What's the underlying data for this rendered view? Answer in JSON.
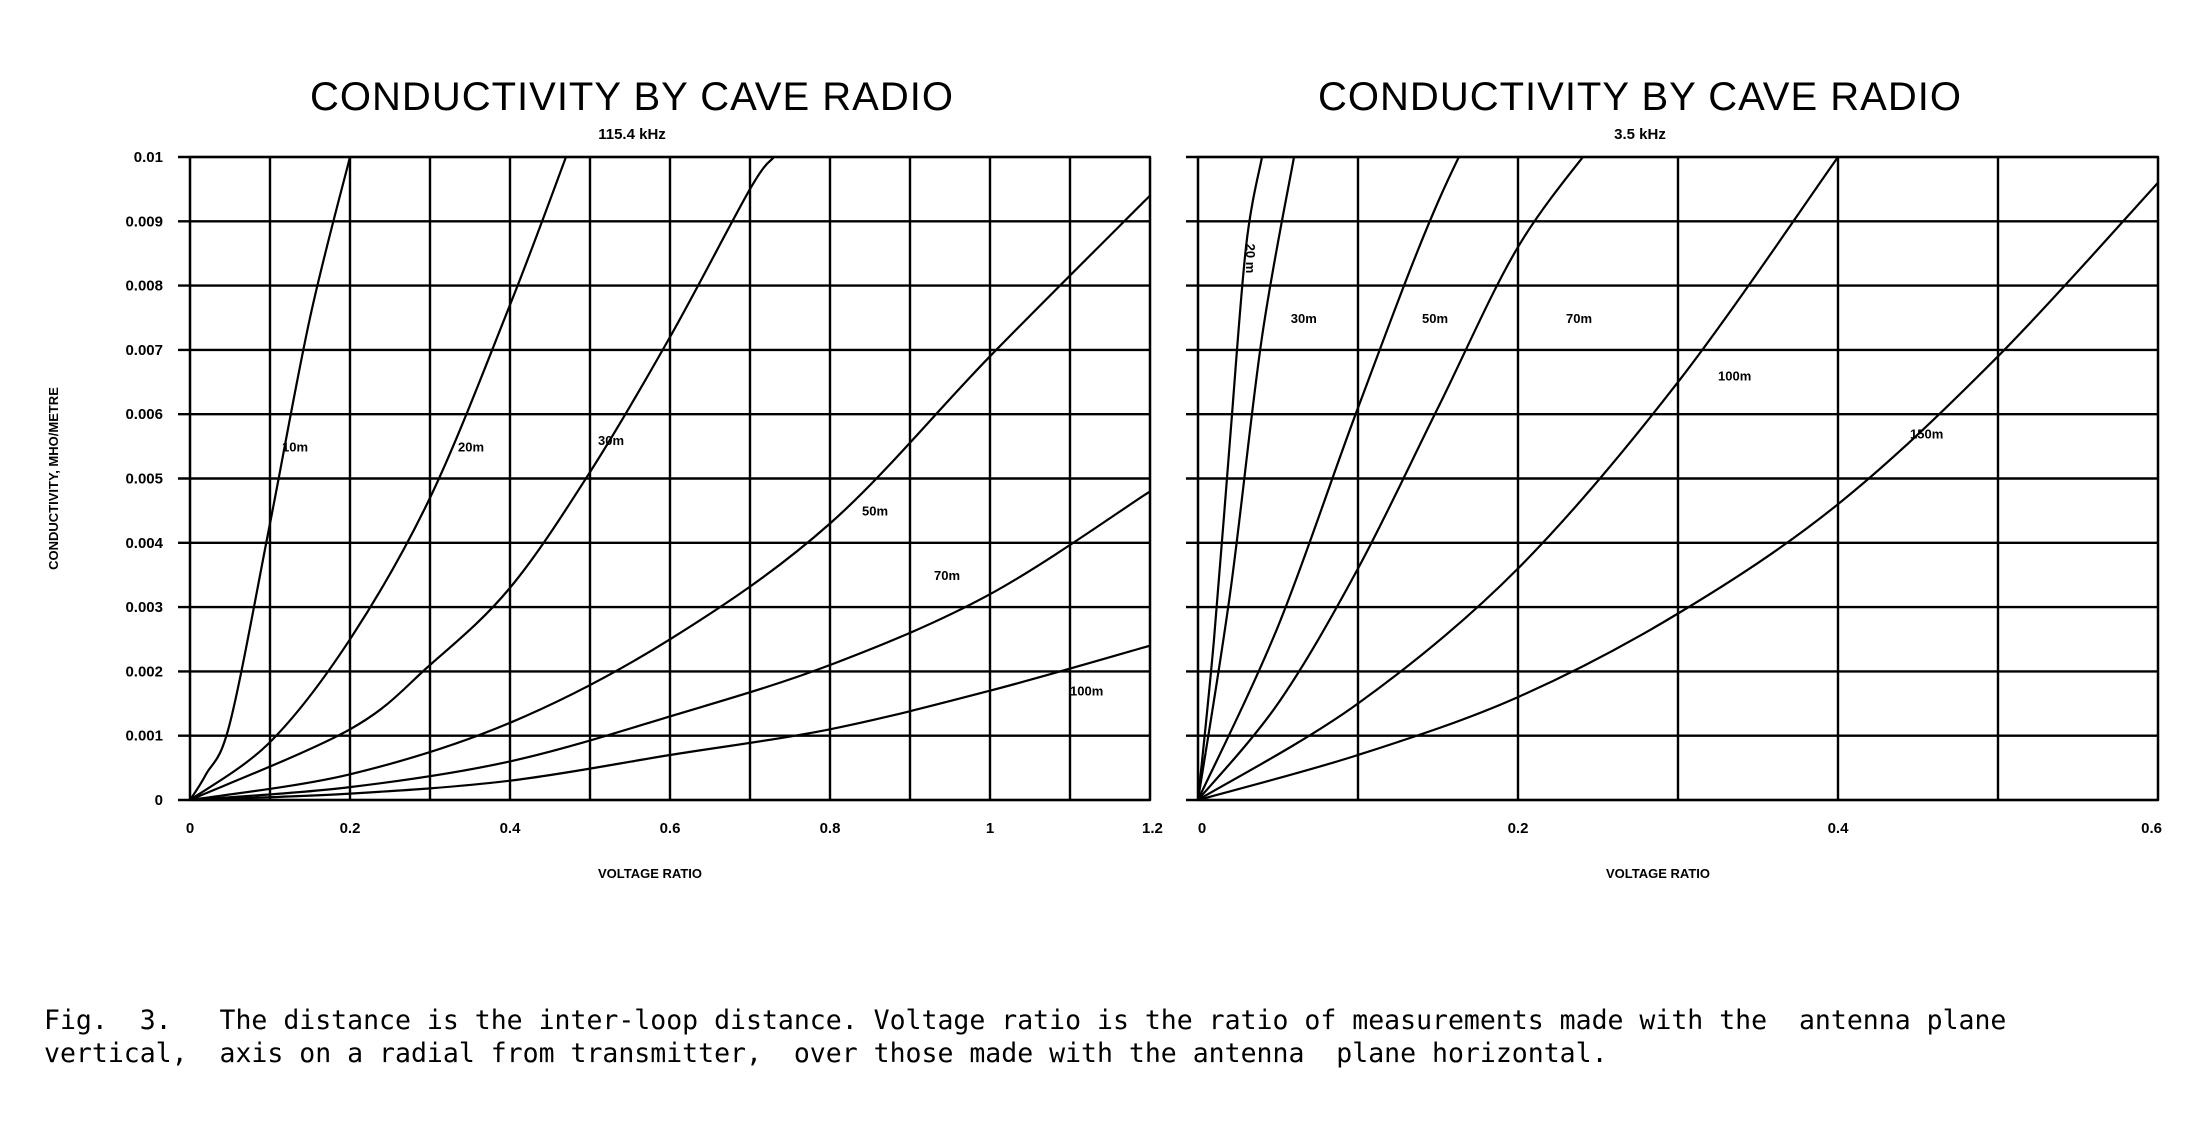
{
  "chart_data": [
    {
      "type": "line",
      "title": "CONDUCTIVITY BY CAVE RADIO",
      "subtitle": "115.4 kHz",
      "xlabel": "VOLTAGE RATIO",
      "ylabel": "CONDUCTIVITY, MHO/METRE",
      "xlim": [
        0,
        1.2
      ],
      "ylim": [
        0,
        0.01
      ],
      "x_ticks": [
        "0",
        "0.2",
        "0.4",
        "0.6",
        "0.8",
        "1",
        "1.2"
      ],
      "y_ticks": [
        "0",
        "0.001",
        "0.002",
        "0.003",
        "0.004",
        "0.005",
        "0.006",
        "0.007",
        "0.008",
        "0.009",
        "0.01"
      ],
      "grid": true,
      "series": [
        {
          "name": "10m",
          "x": [
            0,
            0.02,
            0.05,
            0.1,
            0.15,
            0.2
          ],
          "y": [
            0,
            0.0004,
            0.0012,
            0.0043,
            0.0075,
            0.01
          ]
        },
        {
          "name": "20m",
          "x": [
            0,
            0.1,
            0.2,
            0.3,
            0.4,
            0.47
          ],
          "y": [
            0,
            0.0009,
            0.0025,
            0.0047,
            0.0077,
            0.01
          ]
        },
        {
          "name": "30m",
          "x": [
            0,
            0.2,
            0.3,
            0.4,
            0.5,
            0.6,
            0.7,
            0.73
          ],
          "y": [
            0,
            0.0011,
            0.0021,
            0.0033,
            0.0051,
            0.0072,
            0.0095,
            0.01
          ]
        },
        {
          "name": "50m",
          "x": [
            0,
            0.2,
            0.4,
            0.6,
            0.8,
            1.0,
            1.2
          ],
          "y": [
            0,
            0.0004,
            0.0012,
            0.0025,
            0.0043,
            0.0069,
            0.0094
          ]
        },
        {
          "name": "70m",
          "x": [
            0,
            0.2,
            0.4,
            0.6,
            0.8,
            1.0,
            1.2
          ],
          "y": [
            0,
            0.0002,
            0.0006,
            0.0013,
            0.0021,
            0.0032,
            0.0048
          ]
        },
        {
          "name": "100m",
          "x": [
            0,
            0.2,
            0.4,
            0.6,
            0.8,
            1.0,
            1.2
          ],
          "y": [
            0,
            0.0001,
            0.0003,
            0.0007,
            0.0011,
            0.0017,
            0.0024
          ]
        }
      ],
      "curve_labels": [
        "10m",
        "20m",
        "30m",
        "50m",
        "70m",
        "100m"
      ]
    },
    {
      "type": "line",
      "title": "CONDUCTIVITY BY CAVE RADIO",
      "subtitle": "3.5 kHz",
      "xlabel": "VOLTAGE RATIO",
      "xlim": [
        0,
        0.6
      ],
      "ylim": [
        0,
        0.01
      ],
      "x_ticks": [
        "0",
        "0.2",
        "0.4",
        "0.6"
      ],
      "grid": true,
      "series": [
        {
          "name": "20m",
          "x": [
            0,
            0.01,
            0.02,
            0.03,
            0.04
          ],
          "y": [
            0,
            0.0025,
            0.0056,
            0.0086,
            0.01
          ]
        },
        {
          "name": "30m",
          "x": [
            0,
            0.02,
            0.04,
            0.06
          ],
          "y": [
            0,
            0.0032,
            0.0072,
            0.01
          ]
        },
        {
          "name": "50m",
          "x": [
            0,
            0.05,
            0.1,
            0.15,
            0.2
          ],
          "y": [
            0,
            0.0027,
            0.0061,
            0.0093,
            0.0118
          ]
        },
        {
          "name": "70m",
          "x": [
            0,
            0.05,
            0.1,
            0.15,
            0.2,
            0.25
          ],
          "y": [
            0,
            0.0015,
            0.0036,
            0.0061,
            0.0086,
            0.0103
          ]
        },
        {
          "name": "100m",
          "x": [
            0,
            0.1,
            0.2,
            0.3,
            0.4
          ],
          "y": [
            0,
            0.0015,
            0.0036,
            0.0065,
            0.01
          ]
        },
        {
          "name": "150m",
          "x": [
            0,
            0.1,
            0.2,
            0.3,
            0.4,
            0.5,
            0.6
          ],
          "y": [
            0,
            0.0007,
            0.0016,
            0.0029,
            0.0046,
            0.0069,
            0.0096
          ]
        }
      ],
      "curve_labels": [
        "20 m",
        "30m",
        "50m",
        "70m",
        "100m",
        "150m"
      ]
    }
  ],
  "caption": "Fig.  3.   The distance is the inter-loop distance. Voltage ratio is the ratio of measurements made with the  antenna plane vertical,  axis on a radial from transmitter,  over those made with the antenna  plane horizontal."
}
